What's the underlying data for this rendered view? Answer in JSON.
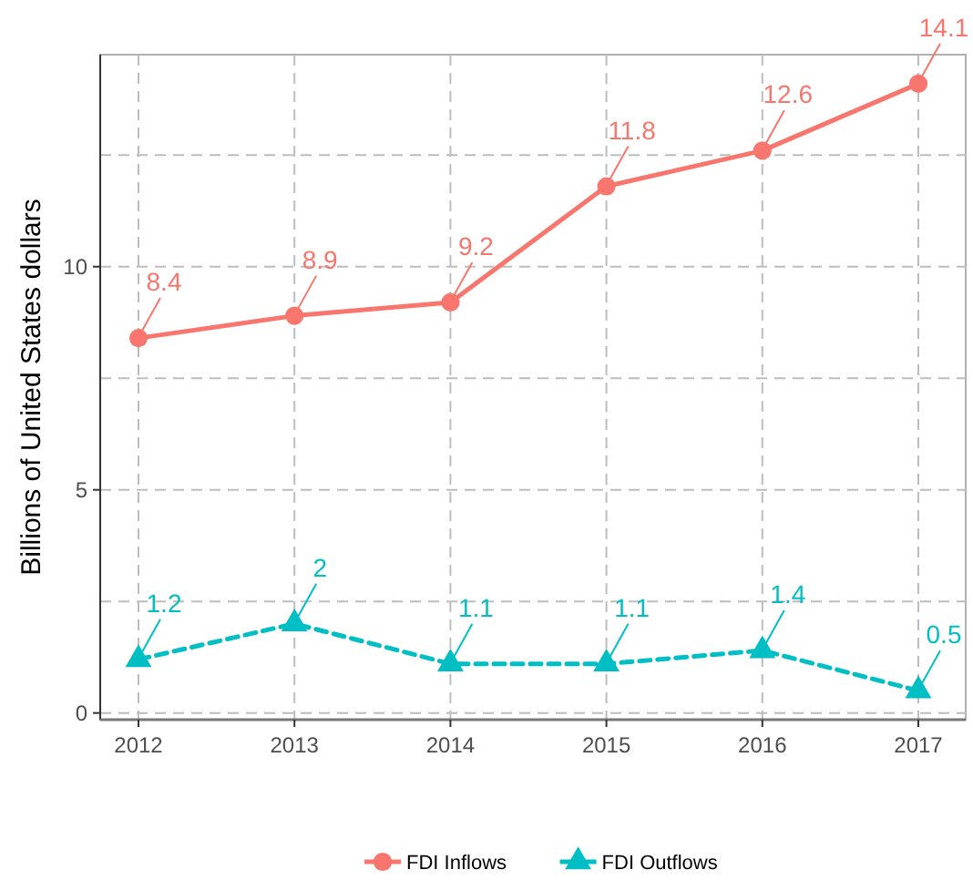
{
  "chart_data": {
    "type": "line",
    "ylabel": "Billions of United States dollars",
    "categories": [
      "2012",
      "2013",
      "2014",
      "2015",
      "2016",
      "2017"
    ],
    "series": [
      {
        "name": "FDI Inflows",
        "color": "#f8766d",
        "marker": "circle",
        "line_style": "solid",
        "values": [
          8.4,
          8.9,
          9.2,
          11.8,
          12.6,
          14.1
        ]
      },
      {
        "name": "FDI Outflows",
        "color": "#00bfc4",
        "marker": "triangle",
        "line_style": "dashed",
        "values": [
          1.2,
          2,
          1.1,
          1.1,
          1.4,
          0.5
        ]
      }
    ],
    "ylim": [
      -0.15,
      14.75
    ],
    "yticks": [
      0,
      {
        "value": 2.5,
        "label": null
      },
      5,
      {
        "value": 7.5,
        "label": null
      },
      10,
      {
        "value": 12.5,
        "label": null
      }
    ],
    "grid": true,
    "legend": "bottom",
    "data_labels": true
  }
}
